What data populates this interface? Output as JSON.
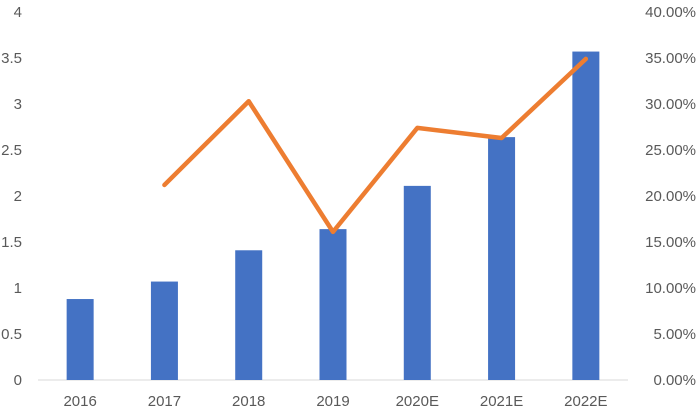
{
  "chart_data": {
    "type": "bar",
    "categories": [
      "2016",
      "2017",
      "2018",
      "2019",
      "2020E",
      "2021E",
      "2022E"
    ],
    "series": [
      {
        "kind": "bar",
        "axis": "left",
        "color": "#4472C4",
        "values": [
          0.88,
          1.07,
          1.41,
          1.64,
          2.11,
          2.64,
          3.57
        ]
      },
      {
        "kind": "line",
        "axis": "right",
        "color": "#ED7D31",
        "values": [
          null,
          21.2,
          30.3,
          16.1,
          27.4,
          26.3,
          34.9
        ]
      }
    ],
    "y_left": {
      "min": 0,
      "max": 4,
      "ticks": [
        "0",
        "0.5",
        "1",
        "1.5",
        "2",
        "2.5",
        "3",
        "3.5",
        "4"
      ]
    },
    "y_right": {
      "min": 0,
      "max": 40,
      "ticks": [
        "0.00%",
        "5.00%",
        "10.00%",
        "15.00%",
        "20.00%",
        "25.00%",
        "30.00%",
        "35.00%",
        "40.00%"
      ]
    },
    "axis_color": "#D9D9D9",
    "grid": false,
    "legend": "none"
  }
}
